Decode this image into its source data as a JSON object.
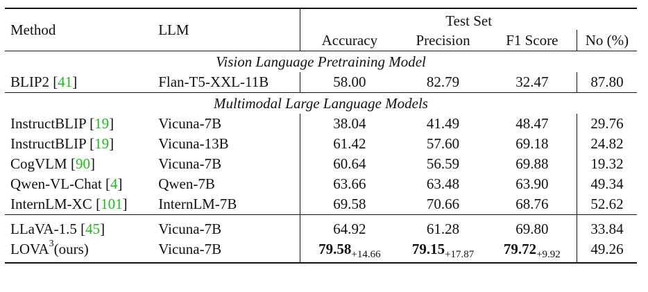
{
  "header": {
    "method": "Method",
    "llm": "LLM",
    "test_set": "Test Set",
    "accuracy": "Accuracy",
    "precision": "Precision",
    "f1": "F1 Score",
    "no": "No (%)"
  },
  "sections": {
    "vlp": "Vision Language Pretraining Model",
    "mllm": "Multimodal Large Language Models"
  },
  "rows": [
    {
      "method": "BLIP2",
      "cite": "41",
      "llm": "Flan-T5-XXL-11B",
      "acc": "58.00",
      "prec": "82.79",
      "f1": "32.47",
      "no": "87.80"
    },
    {
      "method": "InstructBLIP",
      "cite": "19",
      "llm": "Vicuna-7B",
      "acc": "38.04",
      "prec": "41.49",
      "f1": "48.47",
      "no": "29.76"
    },
    {
      "method": "InstructBLIP",
      "cite": "19",
      "llm": "Vicuna-13B",
      "acc": "61.42",
      "prec": "57.60",
      "f1": "69.18",
      "no": "24.82"
    },
    {
      "method": "CogVLM",
      "cite": "90",
      "llm": "Vicuna-7B",
      "acc": "60.64",
      "prec": "56.59",
      "f1": "69.88",
      "no": "19.32"
    },
    {
      "method": "Qwen-VL-Chat",
      "cite": "4",
      "llm": "Qwen-7B",
      "acc": "63.66",
      "prec": "63.48",
      "f1": "63.90",
      "no": "49.34"
    },
    {
      "method": "InternLM-XC",
      "cite": "101",
      "llm": "InternLM-7B",
      "acc": "69.58",
      "prec": "70.66",
      "f1": "68.76",
      "no": "52.62"
    },
    {
      "method": "LLaVA-1.5",
      "cite": "45",
      "llm": "Vicuna-7B",
      "acc": "64.92",
      "prec": "61.28",
      "f1": "69.80",
      "no": "33.84"
    }
  ],
  "ours": {
    "method": "LOVA",
    "sup": "3",
    "suffix": "(ours)",
    "llm": "Vicuna-7B",
    "acc": "79.58",
    "acc_gain": "+14.66",
    "prec": "79.15",
    "prec_gain": "+17.87",
    "f1": "79.72",
    "f1_gain": "+9.92",
    "no": "49.26"
  }
}
